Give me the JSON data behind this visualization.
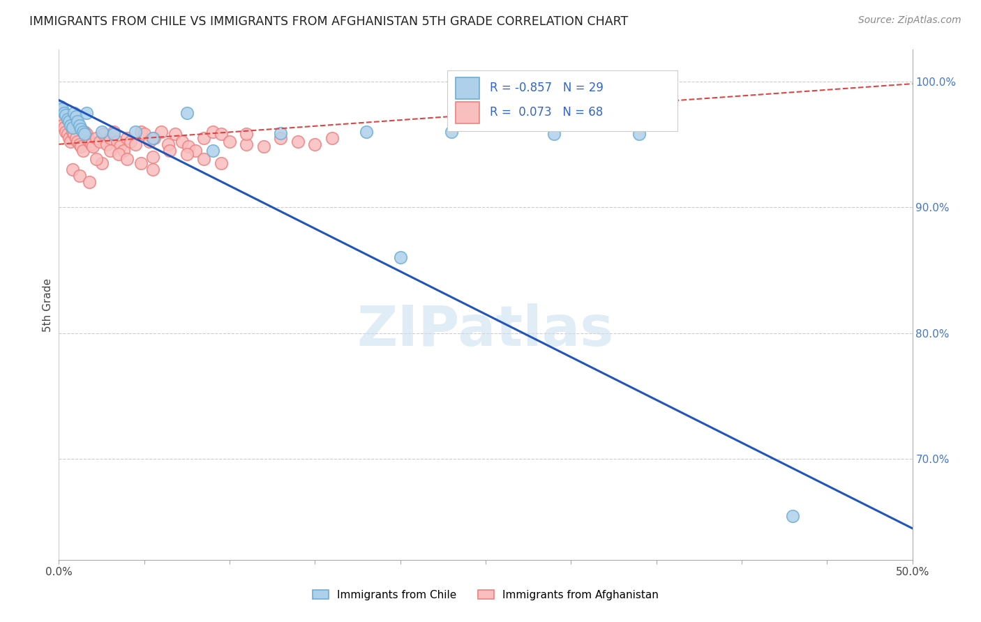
{
  "title": "IMMIGRANTS FROM CHILE VS IMMIGRANTS FROM AFGHANISTAN 5TH GRADE CORRELATION CHART",
  "source": "Source: ZipAtlas.com",
  "ylabel_left": "5th Grade",
  "x_min": 0.0,
  "x_max": 0.5,
  "y_min": 0.62,
  "y_max": 1.025,
  "y_ticks_right": [
    0.7,
    0.8,
    0.9,
    1.0
  ],
  "y_tick_labels_right": [
    "70.0%",
    "80.0%",
    "90.0%",
    "100.0%"
  ],
  "watermark": "ZIPatlas",
  "legend_R_chile": "-0.857",
  "legend_N_chile": "29",
  "legend_R_afghanistan": "0.073",
  "legend_N_afghanistan": "68",
  "chile_color": "#6baed6",
  "chile_color_fill": "#afd0ea",
  "afghanistan_color": "#f08080",
  "afghanistan_color_fill": "#f9bebe",
  "chile_line_color": "#2255bb",
  "afghanistan_line_color": "#dd4444",
  "grid_color": "#cccccc",
  "chile_scatter_x": [
    0.001,
    0.002,
    0.003,
    0.004,
    0.005,
    0.006,
    0.007,
    0.008,
    0.009,
    0.01,
    0.011,
    0.012,
    0.013,
    0.014,
    0.015,
    0.016,
    0.025,
    0.032,
    0.045,
    0.055,
    0.075,
    0.09,
    0.13,
    0.18,
    0.2,
    0.23,
    0.29,
    0.34,
    0.43
  ],
  "chile_scatter_y": [
    0.98,
    0.978,
    0.975,
    0.973,
    0.97,
    0.968,
    0.965,
    0.963,
    0.975,
    0.972,
    0.968,
    0.965,
    0.962,
    0.96,
    0.958,
    0.975,
    0.96,
    0.958,
    0.96,
    0.955,
    0.975,
    0.945,
    0.959,
    0.96,
    0.86,
    0.96,
    0.958,
    0.958,
    0.655
  ],
  "afghanistan_scatter_x": [
    0.001,
    0.002,
    0.003,
    0.004,
    0.005,
    0.006,
    0.007,
    0.008,
    0.009,
    0.01,
    0.011,
    0.012,
    0.013,
    0.014,
    0.015,
    0.016,
    0.017,
    0.018,
    0.019,
    0.02,
    0.022,
    0.024,
    0.026,
    0.028,
    0.03,
    0.032,
    0.034,
    0.036,
    0.038,
    0.04,
    0.042,
    0.045,
    0.048,
    0.05,
    0.053,
    0.056,
    0.06,
    0.064,
    0.068,
    0.072,
    0.076,
    0.08,
    0.085,
    0.09,
    0.095,
    0.1,
    0.11,
    0.12,
    0.13,
    0.14,
    0.15,
    0.16,
    0.055,
    0.025,
    0.008,
    0.012,
    0.018,
    0.022,
    0.03,
    0.035,
    0.04,
    0.048,
    0.055,
    0.065,
    0.075,
    0.085,
    0.095,
    0.11
  ],
  "afghanistan_scatter_y": [
    0.968,
    0.965,
    0.963,
    0.96,
    0.958,
    0.955,
    0.952,
    0.96,
    0.958,
    0.955,
    0.952,
    0.95,
    0.948,
    0.945,
    0.96,
    0.958,
    0.955,
    0.952,
    0.95,
    0.948,
    0.955,
    0.952,
    0.958,
    0.95,
    0.955,
    0.96,
    0.952,
    0.948,
    0.945,
    0.955,
    0.952,
    0.95,
    0.96,
    0.958,
    0.952,
    0.955,
    0.96,
    0.95,
    0.958,
    0.952,
    0.948,
    0.945,
    0.955,
    0.96,
    0.958,
    0.952,
    0.95,
    0.948,
    0.955,
    0.952,
    0.95,
    0.955,
    0.94,
    0.935,
    0.93,
    0.925,
    0.92,
    0.938,
    0.945,
    0.942,
    0.938,
    0.935,
    0.93,
    0.945,
    0.942,
    0.938,
    0.935,
    0.958
  ],
  "chile_trend_x": [
    0.0,
    0.5
  ],
  "chile_trend_y": [
    0.985,
    0.645
  ],
  "afghanistan_trend_x": [
    0.0,
    0.5
  ],
  "afghanistan_trend_y": [
    0.95,
    0.998
  ]
}
